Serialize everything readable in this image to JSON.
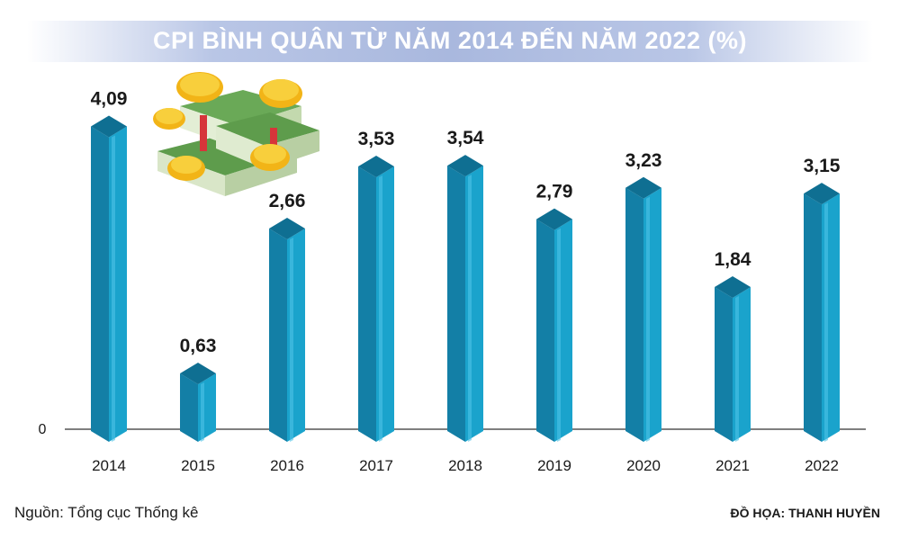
{
  "chart_data": {
    "type": "bar",
    "title": "CPI BÌNH QUÂN TỪ NĂM 2014 ĐẾN NĂM 2022 (%)",
    "categories": [
      "2014",
      "2015",
      "2016",
      "2017",
      "2018",
      "2019",
      "2020",
      "2021",
      "2022"
    ],
    "values": [
      4.09,
      0.63,
      2.66,
      3.53,
      3.54,
      2.79,
      3.23,
      1.84,
      3.15
    ],
    "value_labels": [
      "4,09",
      "0,63",
      "2,66",
      "3,53",
      "3,54",
      "2,79",
      "3,23",
      "1,84",
      "3,15"
    ],
    "ylim": [
      0,
      4.5
    ],
    "y_zero_label": "0",
    "xlabel": "",
    "ylabel": "",
    "grid": false,
    "colors": {
      "bar_front": "#1aa3cc",
      "bar_side": "#137fa6",
      "bar_top": "#0f6f92",
      "axis": "#555555",
      "text": "#1a1a1a"
    }
  },
  "footer": {
    "source": "Nguồn: Tổng cục Thống kê",
    "credit": "ĐỒ HỌA: THANH HUYỀN"
  },
  "decoration": {
    "illustration": "money-stacks-and-gold-coins"
  }
}
